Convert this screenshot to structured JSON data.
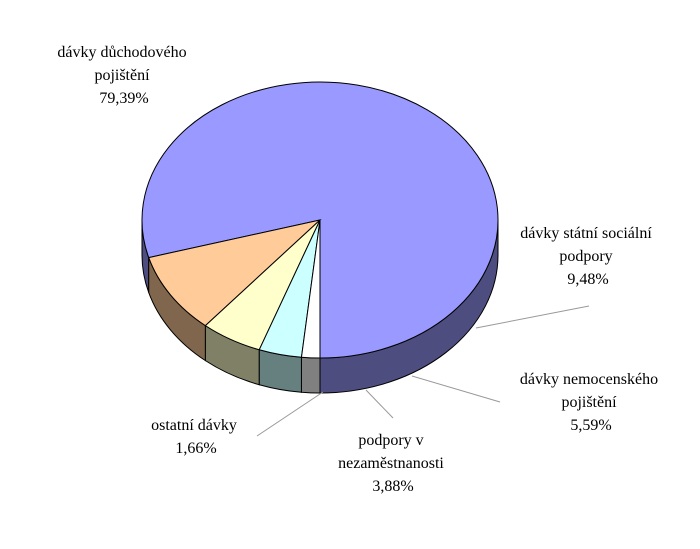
{
  "chart_data": {
    "type": "pie",
    "style": "3d",
    "title": "",
    "slices": [
      {
        "label_lines": [
          "dávky důchodového",
          "pojištění"
        ],
        "value_label": "79,39%",
        "value": 79.39,
        "color": "#9999ff"
      },
      {
        "label_lines": [
          "dávky státní sociální",
          "podpory"
        ],
        "value_label": "9,48%",
        "value": 9.48,
        "color": "#ffcc99"
      },
      {
        "label_lines": [
          "dávky nemocenského",
          "pojištění"
        ],
        "value_label": "5,59%",
        "value": 5.59,
        "color": "#ffffcc"
      },
      {
        "label_lines": [
          "podpory v",
          "nezaměstnanosti"
        ],
        "value_label": "3,88%",
        "value": 3.88,
        "color": "#ccffff"
      },
      {
        "label_lines": [
          "ostatní dávky"
        ],
        "value_label": "1,66%",
        "value": 1.66,
        "color": "#ffffff"
      }
    ]
  }
}
